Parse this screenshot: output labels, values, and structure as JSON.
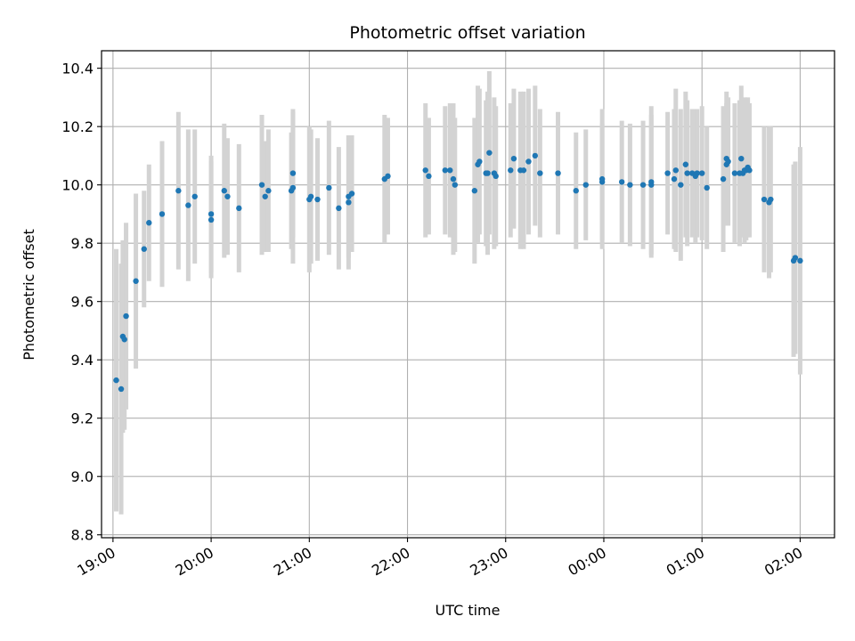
{
  "chart_data": {
    "type": "scatter",
    "title": "Photometric offset variation",
    "xlabel": "UTC time",
    "ylabel": "Photometric offset",
    "grid": true,
    "x_ticks": [
      "19:00",
      "20:00",
      "21:00",
      "22:00",
      "23:00",
      "00:00",
      "01:00",
      "02:00"
    ],
    "xlim": [
      "18:53",
      "02:21"
    ],
    "y_ticks": [
      "8.8",
      "9.0",
      "9.2",
      "9.4",
      "9.6",
      "9.8",
      "10.0",
      "10.2",
      "10.4"
    ],
    "ylim": [
      8.79,
      10.46
    ],
    "point_color": "#1f77b4",
    "errorbar_color": "#d3d3d3",
    "series": [
      {
        "x": [
          "19:02",
          "19:05",
          "19:06",
          "19:07",
          "19:08",
          "19:14",
          "19:19",
          "19:22",
          "19:30",
          "19:40",
          "19:46",
          "19:50",
          "20:00",
          "20:00",
          "20:08",
          "20:10",
          "20:17",
          "20:31",
          "20:33",
          "20:35",
          "20:49",
          "20:50",
          "20:50",
          "21:00",
          "21:01",
          "21:05",
          "21:12",
          "21:18",
          "21:24",
          "21:24",
          "21:26",
          "21:46",
          "21:48",
          "22:11",
          "22:13",
          "22:23",
          "22:26",
          "22:28",
          "22:29",
          "22:41",
          "22:43",
          "22:44",
          "22:48",
          "22:49",
          "22:50",
          "22:53",
          "22:54",
          "23:03",
          "23:05",
          "23:09",
          "23:11",
          "23:14",
          "23:18",
          "23:21",
          "23:32",
          "23:43",
          "23:49",
          "23:59",
          "23:59",
          "00:11",
          "00:16",
          "00:24",
          "00:29",
          "00:29",
          "00:39",
          "00:43",
          "00:44",
          "00:47",
          "00:50",
          "00:51",
          "00:54",
          "00:56",
          "00:57",
          "01:00",
          "01:03",
          "01:13",
          "01:15",
          "01:15",
          "01:16",
          "01:20",
          "01:23",
          "01:24",
          "01:25",
          "01:26",
          "01:27",
          "01:28",
          "01:29",
          "01:38",
          "01:41",
          "01:42",
          "01:56",
          "01:57",
          "02:00"
        ],
        "y": [
          9.33,
          9.3,
          9.48,
          9.47,
          9.55,
          9.67,
          9.78,
          9.87,
          9.9,
          9.98,
          9.93,
          9.96,
          9.9,
          9.88,
          9.98,
          9.96,
          9.92,
          10.0,
          9.96,
          9.98,
          9.98,
          9.99,
          10.04,
          9.95,
          9.96,
          9.95,
          9.99,
          9.92,
          9.96,
          9.94,
          9.97,
          10.02,
          10.03,
          10.05,
          10.03,
          10.05,
          10.05,
          10.02,
          10.0,
          9.98,
          10.07,
          10.08,
          10.04,
          10.04,
          10.11,
          10.04,
          10.03,
          10.05,
          10.09,
          10.05,
          10.05,
          10.08,
          10.1,
          10.04,
          10.04,
          9.98,
          10.0,
          10.01,
          10.02,
          10.01,
          10.0,
          10.0,
          10.0,
          10.01,
          10.04,
          10.02,
          10.05,
          10.0,
          10.07,
          10.04,
          10.04,
          10.03,
          10.04,
          10.04,
          9.99,
          10.02,
          10.09,
          10.07,
          10.08,
          10.04,
          10.04,
          10.09,
          10.04,
          10.05,
          10.05,
          10.06,
          10.05,
          9.95,
          9.94,
          9.95,
          9.74,
          9.75,
          9.74
        ],
        "err": [
          0.45,
          0.43,
          0.33,
          0.31,
          0.32,
          0.3,
          0.2,
          0.2,
          0.25,
          0.27,
          0.26,
          0.23,
          0.2,
          0.2,
          0.23,
          0.2,
          0.22,
          0.24,
          0.19,
          0.21,
          0.2,
          0.26,
          0.22,
          0.25,
          0.23,
          0.21,
          0.23,
          0.21,
          0.21,
          0.23,
          0.2,
          0.22,
          0.2,
          0.23,
          0.2,
          0.22,
          0.23,
          0.26,
          0.23,
          0.25,
          0.27,
          0.25,
          0.25,
          0.28,
          0.28,
          0.26,
          0.24,
          0.23,
          0.24,
          0.27,
          0.27,
          0.25,
          0.24,
          0.22,
          0.21,
          0.2,
          0.19,
          0.2,
          0.24,
          0.21,
          0.21,
          0.22,
          0.24,
          0.26,
          0.21,
          0.24,
          0.28,
          0.26,
          0.25,
          0.25,
          0.22,
          0.23,
          0.22,
          0.23,
          0.21,
          0.25,
          0.23,
          0.21,
          0.22,
          0.24,
          0.25,
          0.25,
          0.22,
          0.25,
          0.24,
          0.24,
          0.23,
          0.25,
          0.26,
          0.25,
          0.33,
          0.33,
          0.39
        ]
      }
    ]
  }
}
